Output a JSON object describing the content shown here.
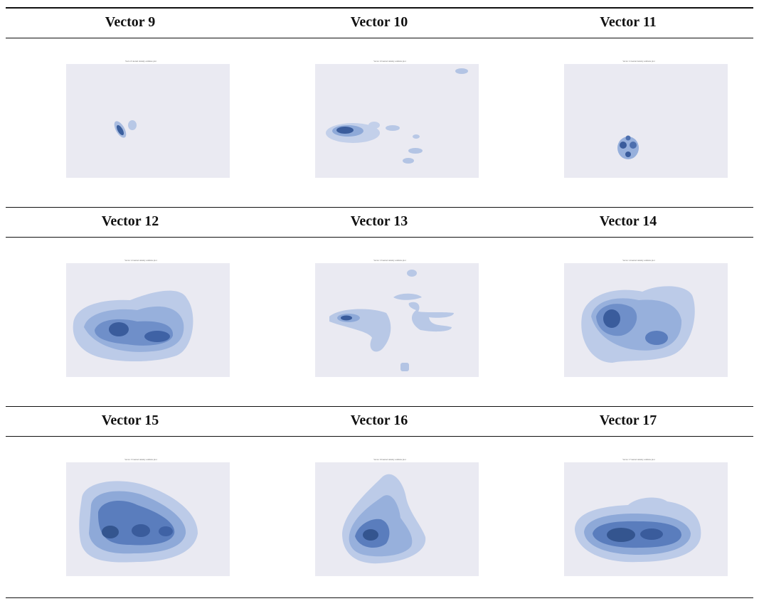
{
  "caption": "",
  "rows": [
    [
      "Vector 9",
      "Vector 10",
      "Vector 11"
    ],
    [
      "Vector 12",
      "Vector 13",
      "Vector 14"
    ],
    [
      "Vector 15",
      "Vector 16",
      "Vector 17"
    ]
  ],
  "plot": {
    "background": "#eaeaf2",
    "density_color": "#4c72b0",
    "style": "kernel density contour (filled)"
  }
}
